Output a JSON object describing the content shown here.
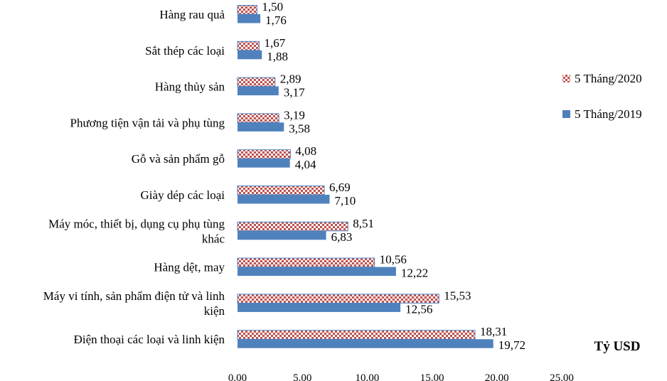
{
  "chart_data": {
    "type": "bar",
    "orientation": "horizontal",
    "categories": [
      [
        "Hàng rau quả"
      ],
      [
        "Sắt thép các loại"
      ],
      [
        "Hàng thủy sản"
      ],
      [
        "Phương tiện vận tải và phụ tùng"
      ],
      [
        "Gỗ và sản phẩm gỗ"
      ],
      [
        "Giày dép các loại"
      ],
      [
        "Máy móc, thiết bị, dụng cụ phụ tùng",
        "khác"
      ],
      [
        "Hàng dệt, may"
      ],
      [
        "Máy vi tính, sản phẩm điện tử và linh",
        "kiện"
      ],
      [
        "Điện thoại các loại và linh kiện"
      ]
    ],
    "series": [
      {
        "name": "5 Tháng/2020",
        "pattern": "checkered",
        "color": "#c0504d",
        "values": [
          1.5,
          1.67,
          2.89,
          3.19,
          4.08,
          6.69,
          8.51,
          10.56,
          15.53,
          18.31
        ],
        "labels": [
          "1,50",
          "1,67",
          "2,89",
          "3,19",
          "4,08",
          "6,69",
          "8,51",
          "10,56",
          "15,53",
          "18,31"
        ]
      },
      {
        "name": "5 Tháng/2019",
        "pattern": "solid",
        "color": "#4f81bd",
        "values": [
          1.76,
          1.88,
          3.17,
          3.58,
          4.04,
          7.1,
          6.83,
          12.22,
          12.56,
          19.72
        ],
        "labels": [
          "1,76",
          "1,88",
          "3,17",
          "3,58",
          "4,04",
          "7,10",
          "6,83",
          "12,22",
          "12,56",
          "19,72"
        ]
      }
    ],
    "xlim": [
      0,
      25
    ],
    "xticks": [
      0,
      5,
      10,
      15,
      20,
      25
    ],
    "xtick_labels": [
      "0.00",
      "5.00",
      "10.00",
      "15.00",
      "20.00",
      "25.00"
    ],
    "unit_label": "Tỷ USD",
    "legend_position": "right",
    "grid": false
  }
}
